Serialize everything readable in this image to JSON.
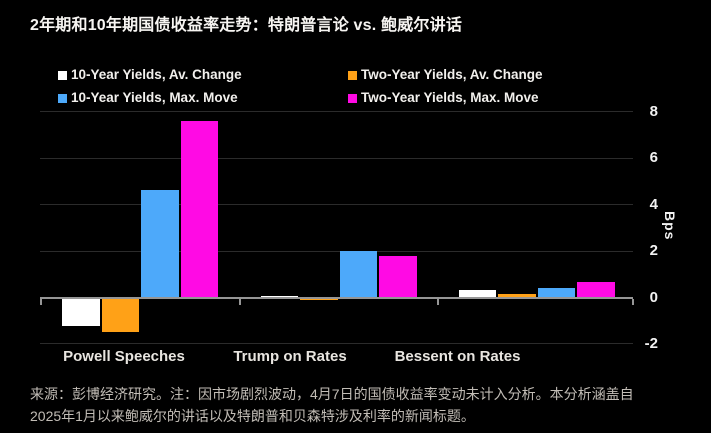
{
  "title": "2年期和10年期国债收益率走势：特朗普言论 vs. 鲍威尔讲话",
  "chart_data": {
    "type": "bar",
    "categories": [
      "Powell Speeches",
      "Trump on Rates",
      "Bessent on Rates"
    ],
    "series": [
      {
        "name": "10-Year Yields, Av. Change",
        "color": "#ffffff",
        "values": [
          -1.2,
          0.08,
          0.32
        ]
      },
      {
        "name": "Two-Year Yields, Av. Change",
        "color": "#ffa117",
        "values": [
          -1.45,
          -0.07,
          0.15
        ]
      },
      {
        "name": "10-Year Yields, Max. Move",
        "color": "#4da9fa",
        "values": [
          4.65,
          2.0,
          0.42
        ]
      },
      {
        "name": "Two-Year Yields, Max. Move",
        "color": "#ff0ae4",
        "values": [
          7.6,
          1.78,
          0.65
        ]
      }
    ],
    "ylabel": "Bps",
    "yticks": [
      8,
      6,
      4,
      2,
      0,
      -2
    ],
    "ylim": [
      -2,
      8
    ],
    "grid": true,
    "legend_position": "top"
  },
  "footnote": {
    "lines": [
      "来源：彭博经济研究。注：因市场剧烈波动，4月7日的国债收益率变动未计入分析。本分析涵盖自",
      "2025年1月以来鲍威尔的讲话以及特朗普和贝森特涉及利率的新闻标题。"
    ]
  }
}
